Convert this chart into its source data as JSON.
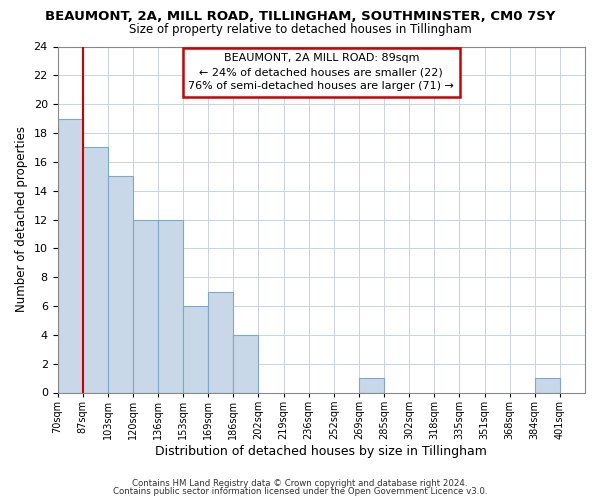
{
  "title": "BEAUMONT, 2A, MILL ROAD, TILLINGHAM, SOUTHMINSTER, CM0 7SY",
  "subtitle": "Size of property relative to detached houses in Tillingham",
  "xlabel": "Distribution of detached houses by size in Tillingham",
  "ylabel": "Number of detached properties",
  "bar_color": "#c8d8e8",
  "bar_edge_color": "#7fa8c8",
  "bin_labels": [
    "70sqm",
    "87sqm",
    "103sqm",
    "120sqm",
    "136sqm",
    "153sqm",
    "169sqm",
    "186sqm",
    "202sqm",
    "219sqm",
    "236sqm",
    "252sqm",
    "269sqm",
    "285sqm",
    "302sqm",
    "318sqm",
    "335sqm",
    "351sqm",
    "368sqm",
    "384sqm",
    "401sqm"
  ],
  "bar_heights": [
    19,
    17,
    15,
    12,
    12,
    6,
    7,
    4,
    0,
    0,
    0,
    0,
    1,
    0,
    0,
    0,
    0,
    0,
    0,
    1,
    0
  ],
  "ylim": [
    0,
    24
  ],
  "yticks": [
    0,
    2,
    4,
    6,
    8,
    10,
    12,
    14,
    16,
    18,
    20,
    22,
    24
  ],
  "vline_x": 1,
  "vline_color": "#cc0000",
  "annotation_title": "BEAUMONT, 2A MILL ROAD: 89sqm",
  "annotation_line1": "← 24% of detached houses are smaller (22)",
  "annotation_line2": "76% of semi-detached houses are larger (71) →",
  "annotation_box_color": "#ffffff",
  "annotation_box_edge": "#cc0000",
  "footer1": "Contains HM Land Registry data © Crown copyright and database right 2024.",
  "footer2": "Contains public sector information licensed under the Open Government Licence v3.0.",
  "background_color": "#ffffff",
  "grid_color": "#c8d4e0"
}
